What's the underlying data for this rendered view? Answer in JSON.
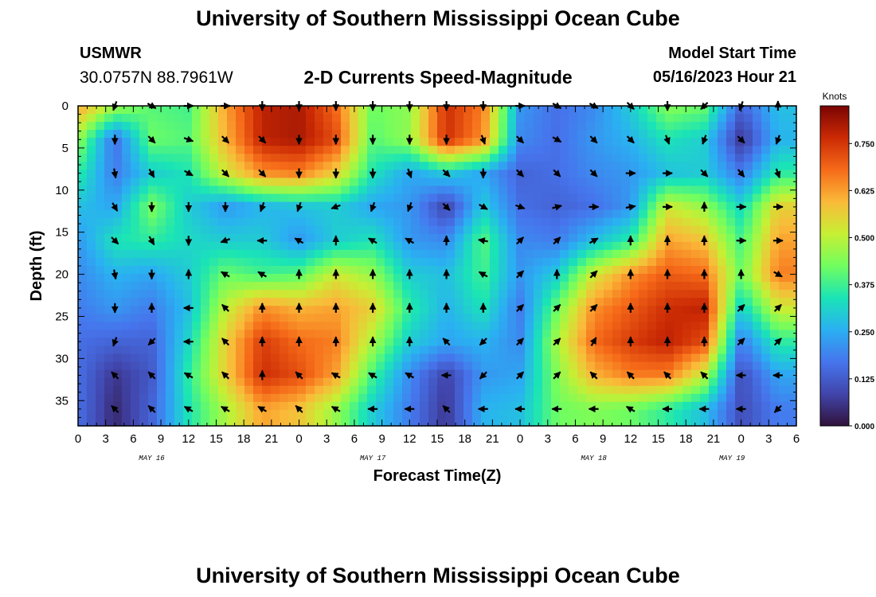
{
  "header": {
    "title": "University of Southern Mississippi Ocean Cube",
    "station": "USMWR",
    "coordinates": "30.0757N  88.7961W",
    "subtitle": "2-D Currents Speed-Magnitude",
    "model_start_label": "Model Start Time",
    "model_start_value": "05/16/2023 Hour 21"
  },
  "footer": {
    "title": "University of Southern Mississippi Ocean Cube"
  },
  "chart_data": {
    "type": "heatmap",
    "title": "2-D Currents Speed-Magnitude",
    "xlabel": "Forecast Time(Z)",
    "ylabel": "Depth (ft)",
    "x_tick_labels": [
      "0",
      "3",
      "6",
      "9",
      "12",
      "15",
      "18",
      "21",
      "0",
      "3",
      "6",
      "9",
      "12",
      "15",
      "18",
      "21",
      "0",
      "3",
      "6",
      "9",
      "12",
      "15",
      "18",
      "21",
      "0",
      "3",
      "6"
    ],
    "date_labels": [
      {
        "label": "MAY 16",
        "hour": 8
      },
      {
        "label": "MAY 17",
        "hour": 32
      },
      {
        "label": "MAY 18",
        "hour": 56
      },
      {
        "label": "MAY 19",
        "hour": 71
      }
    ],
    "xlim_hours": [
      0,
      78
    ],
    "ylim_ft": [
      0,
      38
    ],
    "y_ticks": [
      0,
      5,
      10,
      15,
      20,
      25,
      30,
      35
    ],
    "colorbar": {
      "label": "Knots",
      "range": [
        0,
        0.85
      ],
      "ticks": [
        "0.000",
        "0.125",
        "0.250",
        "0.375",
        "0.500",
        "0.625",
        "0.750"
      ]
    },
    "speed_field_knots": {
      "hours": [
        0,
        4,
        8,
        12,
        16,
        20,
        24,
        28,
        32,
        36,
        40,
        44,
        48,
        52,
        56,
        60,
        64,
        68,
        72,
        76
      ],
      "depths_ft": [
        0,
        4,
        8,
        12,
        16,
        20,
        24,
        28,
        32,
        36
      ],
      "values": [
        [
          0.62,
          0.48,
          0.4,
          0.38,
          0.62,
          0.78,
          0.8,
          0.68,
          0.42,
          0.45,
          0.76,
          0.66,
          0.22,
          0.16,
          0.2,
          0.3,
          0.45,
          0.42,
          0.14,
          0.28
        ],
        [
          0.46,
          0.16,
          0.42,
          0.4,
          0.6,
          0.78,
          0.8,
          0.72,
          0.4,
          0.46,
          0.76,
          0.64,
          0.2,
          0.16,
          0.22,
          0.26,
          0.34,
          0.3,
          0.06,
          0.26
        ],
        [
          0.36,
          0.18,
          0.3,
          0.34,
          0.52,
          0.64,
          0.66,
          0.56,
          0.34,
          0.24,
          0.3,
          0.24,
          0.14,
          0.16,
          0.2,
          0.22,
          0.28,
          0.3,
          0.18,
          0.36
        ],
        [
          0.28,
          0.24,
          0.44,
          0.3,
          0.22,
          0.26,
          0.28,
          0.3,
          0.24,
          0.22,
          0.08,
          0.3,
          0.16,
          0.14,
          0.16,
          0.22,
          0.52,
          0.46,
          0.32,
          0.56
        ],
        [
          0.22,
          0.34,
          0.36,
          0.32,
          0.3,
          0.3,
          0.22,
          0.3,
          0.34,
          0.22,
          0.2,
          0.4,
          0.2,
          0.18,
          0.28,
          0.36,
          0.62,
          0.58,
          0.38,
          0.62
        ],
        [
          0.2,
          0.26,
          0.24,
          0.3,
          0.42,
          0.38,
          0.4,
          0.52,
          0.46,
          0.3,
          0.28,
          0.38,
          0.22,
          0.3,
          0.52,
          0.64,
          0.7,
          0.68,
          0.42,
          0.66
        ],
        [
          0.18,
          0.22,
          0.18,
          0.28,
          0.5,
          0.64,
          0.6,
          0.62,
          0.56,
          0.36,
          0.26,
          0.34,
          0.18,
          0.42,
          0.64,
          0.7,
          0.76,
          0.78,
          0.3,
          0.52
        ],
        [
          0.16,
          0.14,
          0.14,
          0.32,
          0.56,
          0.74,
          0.68,
          0.66,
          0.48,
          0.3,
          0.24,
          0.26,
          0.2,
          0.48,
          0.68,
          0.74,
          0.78,
          0.72,
          0.18,
          0.36
        ],
        [
          0.16,
          0.06,
          0.12,
          0.36,
          0.56,
          0.76,
          0.72,
          0.62,
          0.38,
          0.2,
          0.08,
          0.22,
          0.24,
          0.44,
          0.6,
          0.66,
          0.66,
          0.5,
          0.1,
          0.24
        ],
        [
          0.16,
          0.04,
          0.14,
          0.34,
          0.48,
          0.62,
          0.58,
          0.46,
          0.3,
          0.18,
          0.06,
          0.26,
          0.28,
          0.42,
          0.44,
          0.42,
          0.36,
          0.28,
          0.1,
          0.18
        ]
      ]
    },
    "current_arrows": {
      "hours": [
        4,
        8,
        12,
        16,
        20,
        24,
        28,
        32,
        36,
        40,
        44,
        48,
        52,
        56,
        60,
        64,
        68,
        72,
        76
      ],
      "depths_ft": [
        0,
        4,
        8,
        12,
        16,
        20,
        24,
        28,
        32,
        36
      ],
      "direction_deg": [
        [
          200,
          120,
          90,
          90,
          180,
          180,
          180,
          180,
          180,
          180,
          180,
          90,
          120,
          120,
          135,
          180,
          225,
          200,
          0
        ],
        [
          180,
          135,
          110,
          135,
          135,
          180,
          180,
          180,
          180,
          180,
          160,
          135,
          120,
          135,
          135,
          160,
          200,
          135,
          200
        ],
        [
          170,
          150,
          120,
          135,
          135,
          180,
          180,
          180,
          160,
          135,
          180,
          135,
          135,
          135,
          90,
          90,
          135,
          140,
          160
        ],
        [
          150,
          180,
          180,
          180,
          200,
          200,
          250,
          200,
          200,
          135,
          120,
          110,
          75,
          90,
          80,
          90,
          0,
          90,
          90
        ],
        [
          135,
          150,
          180,
          250,
          270,
          300,
          0,
          300,
          300,
          0,
          280,
          45,
          45,
          60,
          0,
          0,
          0,
          90,
          90
        ],
        [
          170,
          180,
          0,
          300,
          300,
          0,
          0,
          0,
          0,
          0,
          300,
          45,
          0,
          45,
          0,
          0,
          0,
          0,
          120
        ],
        [
          180,
          0,
          270,
          315,
          0,
          0,
          0,
          0,
          0,
          0,
          0,
          45,
          45,
          45,
          0,
          0,
          0,
          45,
          45
        ],
        [
          200,
          225,
          270,
          315,
          0,
          0,
          0,
          0,
          0,
          315,
          225,
          45,
          45,
          30,
          0,
          0,
          0,
          45,
          45
        ],
        [
          315,
          315,
          300,
          315,
          0,
          315,
          300,
          300,
          300,
          270,
          225,
          45,
          45,
          315,
          315,
          315,
          315,
          270,
          270
        ],
        [
          315,
          315,
          300,
          300,
          300,
          315,
          300,
          270,
          270,
          315,
          270,
          270,
          270,
          270,
          300,
          270,
          270,
          270,
          225
        ]
      ]
    }
  }
}
